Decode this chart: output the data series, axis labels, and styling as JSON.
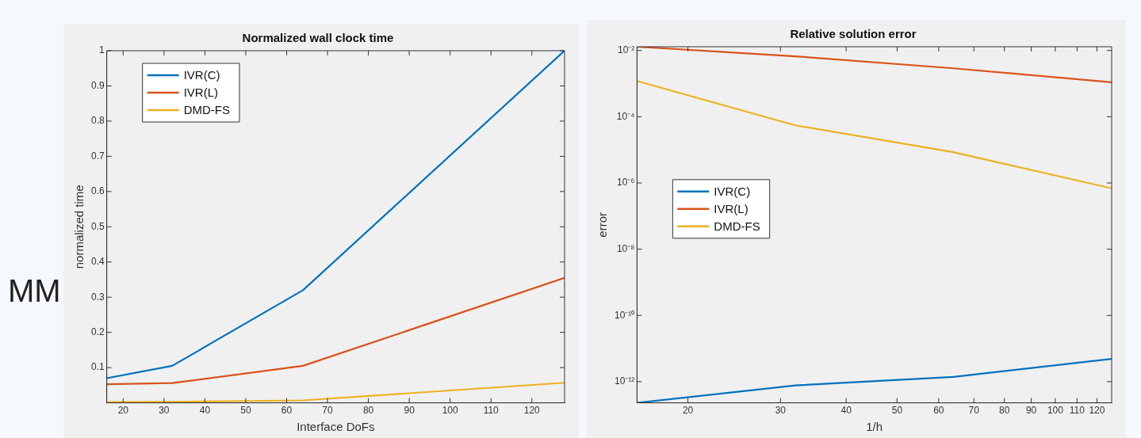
{
  "chart_data": [
    {
      "type": "line",
      "title": "Normalized wall clock time",
      "xlabel": "Interface DoFs",
      "ylabel": "normalized time",
      "x": [
        16,
        32,
        64,
        128
      ],
      "series": [
        {
          "name": "IVR(C)",
          "color": "#0072bd",
          "values": [
            0.07,
            0.105,
            0.32,
            1.0
          ]
        },
        {
          "name": "IVR(L)",
          "color": "#d95319",
          "values": [
            0.053,
            0.056,
            0.105,
            0.355
          ]
        },
        {
          "name": "DMD-FS",
          "color": "#edb120",
          "values": [
            0.002,
            0.003,
            0.007,
            0.057
          ]
        }
      ],
      "xlim": [
        16,
        128
      ],
      "xticks": [
        20,
        30,
        40,
        50,
        60,
        70,
        80,
        90,
        100,
        110,
        120
      ],
      "ylim": [
        0,
        1
      ],
      "yticks": [
        0.1,
        0.2,
        0.3,
        0.4,
        0.5,
        0.6,
        0.7,
        0.8,
        0.9,
        1
      ],
      "grid": false,
      "legend": "top left",
      "marker": "none",
      "line_style": "solid",
      "annotations": [
        "MM"
      ]
    },
    {
      "type": "line",
      "title": "Relative solution error",
      "xlabel": "1/h",
      "ylabel": "error",
      "x": [
        16,
        32,
        64,
        128
      ],
      "series": [
        {
          "name": "IVR(C)",
          "color": "#0072bd",
          "values": [
            2.3e-13,
            7.7e-13,
            1.4e-12,
            4.9e-12
          ]
        },
        {
          "name": "IVR(L)",
          "color": "#d95319",
          "values": [
            0.013,
            0.0067,
            0.0029,
            0.0011
          ]
        },
        {
          "name": "DMD-FS",
          "color": "#edb120",
          "values": [
            0.0012,
            5.5e-05,
            8.5e-06,
            6.9e-07
          ]
        }
      ],
      "log": "xy",
      "xlim": [
        16,
        128
      ],
      "xticks": [
        20,
        30,
        40,
        50,
        60,
        70,
        80,
        90,
        100,
        110,
        120
      ],
      "ylim": [
        2.3e-13,
        0.013
      ],
      "yticks": [
        {
          "value": 1e-12,
          "label": "10⁻¹²"
        },
        {
          "value": 1e-10,
          "label": "10⁻¹⁰"
        },
        {
          "value": 1e-08,
          "label": "10⁻⁸"
        },
        {
          "value": 1e-06,
          "label": "10⁻⁶"
        },
        {
          "value": 0.0001,
          "label": "10⁻⁴"
        },
        {
          "value": 0.01,
          "label": "10⁻²"
        }
      ],
      "grid": false,
      "legend": "left",
      "marker": "none",
      "line_style": "solid"
    }
  ]
}
